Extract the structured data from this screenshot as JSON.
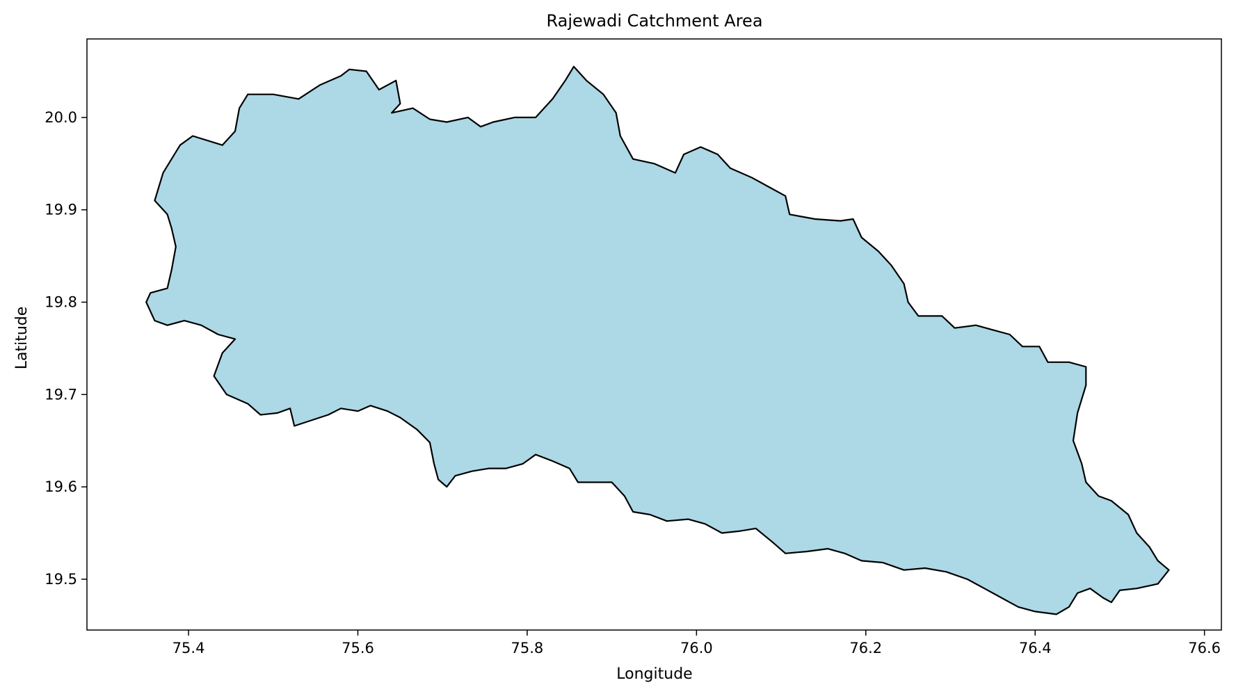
{
  "chart_data": {
    "type": "map",
    "title": "Rajewadi Catchment Area",
    "xlabel": "Longitude",
    "ylabel": "Latitude",
    "xlim": [
      75.28,
      76.62
    ],
    "ylim": [
      19.445,
      20.085
    ],
    "xticks": [
      75.4,
      75.6,
      75.8,
      76.0,
      76.2,
      76.4,
      76.6
    ],
    "xtick_labels": [
      "75.4",
      "75.6",
      "75.8",
      "76.0",
      "76.2",
      "76.4",
      "76.6"
    ],
    "yticks": [
      19.5,
      19.6,
      19.7,
      19.8,
      19.9,
      20.0
    ],
    "ytick_labels": [
      "19.5",
      "19.6",
      "19.7",
      "19.8",
      "19.9",
      "20.0"
    ],
    "grid": false,
    "legend": "none",
    "fill_color": "#add8e6",
    "edge_color": "#000000",
    "region": {
      "name": "Rajewadi Catchment Area",
      "boundary": [
        [
          75.36,
          19.91
        ],
        [
          75.37,
          19.94
        ],
        [
          75.39,
          19.97
        ],
        [
          75.405,
          19.98
        ],
        [
          75.44,
          19.97
        ],
        [
          75.455,
          19.985
        ],
        [
          75.46,
          20.01
        ],
        [
          75.47,
          20.025
        ],
        [
          75.5,
          20.025
        ],
        [
          75.53,
          20.02
        ],
        [
          75.555,
          20.035
        ],
        [
          75.58,
          20.045
        ],
        [
          75.59,
          20.052
        ],
        [
          75.61,
          20.05
        ],
        [
          75.625,
          20.03
        ],
        [
          75.645,
          20.04
        ],
        [
          75.65,
          20.015
        ],
        [
          75.64,
          20.005
        ],
        [
          75.665,
          20.01
        ],
        [
          75.685,
          19.998
        ],
        [
          75.705,
          19.995
        ],
        [
          75.73,
          20.0
        ],
        [
          75.745,
          19.99
        ],
        [
          75.76,
          19.995
        ],
        [
          75.785,
          20.0
        ],
        [
          75.81,
          20.0
        ],
        [
          75.83,
          20.02
        ],
        [
          75.845,
          20.04
        ],
        [
          75.855,
          20.055
        ],
        [
          75.87,
          20.04
        ],
        [
          75.89,
          20.025
        ],
        [
          75.905,
          20.005
        ],
        [
          75.91,
          19.98
        ],
        [
          75.925,
          19.955
        ],
        [
          75.95,
          19.95
        ],
        [
          75.975,
          19.94
        ],
        [
          75.985,
          19.96
        ],
        [
          76.005,
          19.968
        ],
        [
          76.025,
          19.96
        ],
        [
          76.04,
          19.945
        ],
        [
          76.065,
          19.935
        ],
        [
          76.085,
          19.925
        ],
        [
          76.105,
          19.915
        ],
        [
          76.11,
          19.895
        ],
        [
          76.14,
          19.89
        ],
        [
          76.17,
          19.888
        ],
        [
          76.185,
          19.89
        ],
        [
          76.195,
          19.87
        ],
        [
          76.215,
          19.855
        ],
        [
          76.23,
          19.84
        ],
        [
          76.245,
          19.82
        ],
        [
          76.25,
          19.8
        ],
        [
          76.262,
          19.785
        ],
        [
          76.29,
          19.785
        ],
        [
          76.305,
          19.772
        ],
        [
          76.33,
          19.775
        ],
        [
          76.35,
          19.77
        ],
        [
          76.37,
          19.765
        ],
        [
          76.385,
          19.752
        ],
        [
          76.405,
          19.752
        ],
        [
          76.415,
          19.735
        ],
        [
          76.44,
          19.735
        ],
        [
          76.46,
          19.73
        ],
        [
          76.46,
          19.71
        ],
        [
          76.45,
          19.68
        ],
        [
          76.445,
          19.65
        ],
        [
          76.455,
          19.625
        ],
        [
          76.46,
          19.605
        ],
        [
          76.475,
          19.59
        ],
        [
          76.49,
          19.585
        ],
        [
          76.51,
          19.57
        ],
        [
          76.52,
          19.55
        ],
        [
          76.535,
          19.535
        ],
        [
          76.545,
          19.52
        ],
        [
          76.558,
          19.51
        ],
        [
          76.545,
          19.495
        ],
        [
          76.52,
          19.49
        ],
        [
          76.5,
          19.488
        ],
        [
          76.49,
          19.475
        ],
        [
          76.48,
          19.48
        ],
        [
          76.465,
          19.49
        ],
        [
          76.45,
          19.485
        ],
        [
          76.44,
          19.47
        ],
        [
          76.425,
          19.462
        ],
        [
          76.4,
          19.465
        ],
        [
          76.38,
          19.47
        ],
        [
          76.36,
          19.48
        ],
        [
          76.34,
          19.49
        ],
        [
          76.32,
          19.5
        ],
        [
          76.295,
          19.508
        ],
        [
          76.27,
          19.512
        ],
        [
          76.245,
          19.51
        ],
        [
          76.22,
          19.518
        ],
        [
          76.195,
          19.52
        ],
        [
          76.175,
          19.528
        ],
        [
          76.155,
          19.533
        ],
        [
          76.13,
          19.53
        ],
        [
          76.105,
          19.528
        ],
        [
          76.09,
          19.54
        ],
        [
          76.07,
          19.555
        ],
        [
          76.05,
          19.552
        ],
        [
          76.03,
          19.55
        ],
        [
          76.01,
          19.56
        ],
        [
          75.99,
          19.565
        ],
        [
          75.965,
          19.563
        ],
        [
          75.945,
          19.57
        ],
        [
          75.925,
          19.573
        ],
        [
          75.915,
          19.59
        ],
        [
          75.9,
          19.605
        ],
        [
          75.88,
          19.605
        ],
        [
          75.86,
          19.605
        ],
        [
          75.85,
          19.62
        ],
        [
          75.83,
          19.628
        ],
        [
          75.81,
          19.635
        ],
        [
          75.795,
          19.625
        ],
        [
          75.775,
          19.62
        ],
        [
          75.755,
          19.62
        ],
        [
          75.735,
          19.617
        ],
        [
          75.715,
          19.612
        ],
        [
          75.705,
          19.6
        ],
        [
          75.695,
          19.608
        ],
        [
          75.69,
          19.625
        ],
        [
          75.685,
          19.648
        ],
        [
          75.67,
          19.662
        ],
        [
          75.65,
          19.675
        ],
        [
          75.635,
          19.682
        ],
        [
          75.615,
          19.688
        ],
        [
          75.6,
          19.682
        ],
        [
          75.58,
          19.685
        ],
        [
          75.565,
          19.678
        ],
        [
          75.545,
          19.672
        ],
        [
          75.525,
          19.666
        ],
        [
          75.52,
          19.685
        ],
        [
          75.505,
          19.68
        ],
        [
          75.485,
          19.678
        ],
        [
          75.47,
          19.69
        ],
        [
          75.445,
          19.7
        ],
        [
          75.43,
          19.72
        ],
        [
          75.44,
          19.745
        ],
        [
          75.455,
          19.76
        ],
        [
          75.435,
          19.765
        ],
        [
          75.415,
          19.775
        ],
        [
          75.395,
          19.78
        ],
        [
          75.375,
          19.775
        ],
        [
          75.36,
          19.78
        ],
        [
          75.35,
          19.8
        ],
        [
          75.355,
          19.81
        ],
        [
          75.375,
          19.815
        ],
        [
          75.38,
          19.835
        ],
        [
          75.385,
          19.86
        ],
        [
          75.38,
          19.88
        ],
        [
          75.375,
          19.895
        ],
        [
          75.36,
          19.91
        ]
      ]
    }
  }
}
